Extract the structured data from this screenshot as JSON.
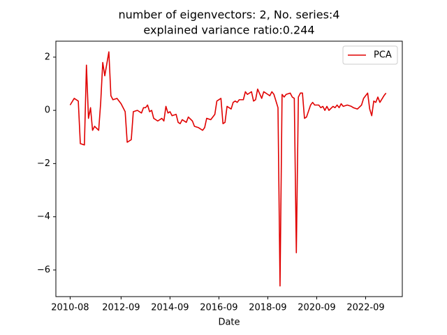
{
  "chart_data": {
    "type": "line",
    "title": [
      "number of eigenvectors: 2, No. series:4",
      "explained variance ratio:0.244"
    ],
    "x_label": "Date",
    "x": [
      "2010-08",
      "2010-10",
      "2010-12",
      "2011-01",
      "2011-03",
      "2011-04",
      "2011-05",
      "2011-06",
      "2011-07",
      "2011-08",
      "2011-10",
      "2011-11",
      "2011-12",
      "2012-01",
      "2012-03",
      "2012-04",
      "2012-05",
      "2012-07",
      "2012-09",
      "2012-11",
      "2012-12",
      "2013-02",
      "2013-03",
      "2013-05",
      "2013-07",
      "2013-08",
      "2013-09",
      "2013-10",
      "2013-11",
      "2013-12",
      "2014-01",
      "2014-03",
      "2014-05",
      "2014-06",
      "2014-07",
      "2014-08",
      "2014-09",
      "2014-10",
      "2014-12",
      "2015-01",
      "2015-02",
      "2015-03",
      "2015-05",
      "2015-06",
      "2015-08",
      "2015-09",
      "2015-11",
      "2016-01",
      "2016-02",
      "2016-03",
      "2016-05",
      "2016-07",
      "2016-08",
      "2016-10",
      "2016-11",
      "2016-12",
      "2017-01",
      "2017-03",
      "2017-04",
      "2017-05",
      "2017-06",
      "2017-07",
      "2017-09",
      "2017-10",
      "2017-11",
      "2018-01",
      "2018-02",
      "2018-03",
      "2018-04",
      "2018-06",
      "2018-07",
      "2018-09",
      "2018-10",
      "2018-11",
      "2018-12",
      "2019-01",
      "2019-02",
      "2019-03",
      "2019-04",
      "2019-05",
      "2019-06",
      "2019-08",
      "2019-09",
      "2019-10",
      "2019-11",
      "2019-12",
      "2020-01",
      "2020-02",
      "2020-03",
      "2020-04",
      "2020-06",
      "2020-07",
      "2020-08",
      "2020-10",
      "2020-11",
      "2020-12",
      "2021-01",
      "2021-02",
      "2021-03",
      "2021-05",
      "2021-06",
      "2021-07",
      "2021-08",
      "2021-09",
      "2021-10",
      "2021-12",
      "2022-02",
      "2022-03",
      "2022-05",
      "2022-07",
      "2022-08",
      "2022-10",
      "2022-11",
      "2022-12",
      "2023-01",
      "2023-02",
      "2023-03",
      "2023-04",
      "2023-06",
      "2023-07"
    ],
    "series": [
      {
        "name": "PCA",
        "color": "#e00000",
        "values": [
          0.2,
          0.45,
          0.35,
          -1.25,
          -1.3,
          1.7,
          -0.3,
          0.1,
          -0.75,
          -0.6,
          -0.75,
          0.3,
          1.8,
          1.3,
          2.2,
          0.55,
          0.4,
          0.45,
          0.25,
          -0.05,
          -1.2,
          -1.1,
          -0.05,
          0,
          -0.1,
          0.1,
          0.1,
          0.2,
          -0.05,
          0,
          -0.3,
          -0.4,
          -0.3,
          -0.4,
          0.15,
          -0.1,
          -0.05,
          -0.2,
          -0.15,
          -0.45,
          -0.5,
          -0.35,
          -0.45,
          -0.25,
          -0.4,
          -0.6,
          -0.65,
          -0.75,
          -0.65,
          -0.3,
          -0.35,
          -0.15,
          0.35,
          0.45,
          -0.5,
          -0.45,
          0.15,
          0.05,
          0.3,
          0.35,
          0.3,
          0.4,
          0.4,
          0.7,
          0.6,
          0.7,
          0.35,
          0.4,
          0.8,
          0.45,
          0.7,
          0.6,
          0.55,
          0.7,
          0.6,
          0.35,
          0.1,
          -6.6,
          0.6,
          0.5,
          0.6,
          0.65,
          0.5,
          0.45,
          -5.35,
          0.5,
          0.65,
          0.65,
          -0.3,
          -0.25,
          0.2,
          0.3,
          0.2,
          0.2,
          0.1,
          0.15,
          0,
          0.15,
          0,
          0.15,
          0.1,
          0.2,
          0.1,
          0.25,
          0.15,
          0.2,
          0.15,
          0.1,
          0.05,
          0.2,
          0.45,
          0.65,
          0.05,
          -0.2,
          0.35,
          0.3,
          0.5,
          0.3,
          0.55,
          0.65
        ]
      }
    ],
    "xlim": [
      "2010-01",
      "2024-03"
    ],
    "xticks": [
      "2010-08",
      "2012-09",
      "2014-09",
      "2016-09",
      "2018-09",
      "2020-09",
      "2022-09"
    ],
    "ylim": [
      -7.0,
      2.6
    ],
    "yticks": [
      {
        "value": -6,
        "label": "−6"
      },
      {
        "value": -4,
        "label": "−4"
      },
      {
        "value": -2,
        "label": "−2"
      },
      0,
      2
    ],
    "grid": false,
    "legend": "upper right"
  }
}
